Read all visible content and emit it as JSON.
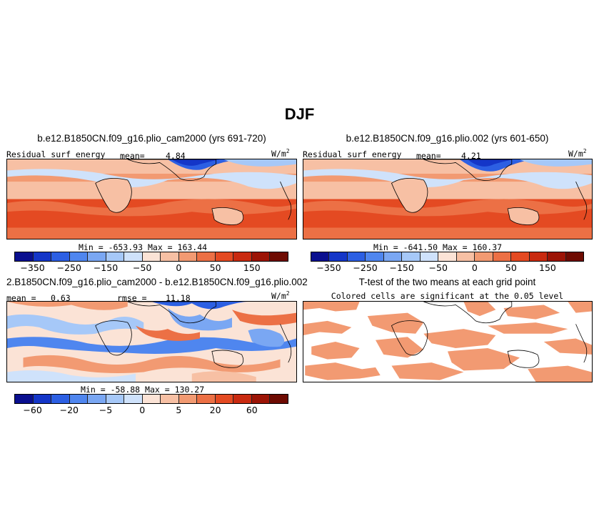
{
  "figure_title": "DJF",
  "palette": [
    "#0a0f8f",
    "#1436c8",
    "#2c5fe3",
    "#4f86ef",
    "#7aa7f3",
    "#a6c8f8",
    "#cfe2fb",
    "#fbe3d6",
    "#f7c0a4",
    "#f29a72",
    "#ec7045",
    "#e44a22",
    "#c92a10",
    "#9c1406",
    "#6e0b02"
  ],
  "chart_data": [
    {
      "type": "heatmap",
      "id": "panel_top_left",
      "title": "b.e12.B1850CN.f09_g16.plio_cam2000 (yrs 691-720)",
      "variable_label": "Residual surf energy",
      "mean_label": "mean=",
      "mean_value": "4.84",
      "units": "W/m",
      "units_exp": "2",
      "min_label": "Min =",
      "min_value": "-653.93",
      "max_label": "Max =",
      "max_value": "163.44",
      "colorbar_ticks": [
        "−350",
        "−250",
        "−150",
        "−50",
        "0",
        "50",
        "150"
      ],
      "colorbar_levels": [
        -400,
        -350,
        -300,
        -250,
        -200,
        -150,
        -100,
        -50,
        0,
        25,
        50,
        100,
        150,
        200,
        250
      ],
      "lon_range": [
        0,
        360
      ],
      "lat_range": [
        -45,
        45
      ]
    },
    {
      "type": "heatmap",
      "id": "panel_top_right",
      "title": "b.e12.B1850CN.f09_g16.plio.002 (yrs 601-650)",
      "variable_label": "Residual surf energy",
      "mean_label": "mean=",
      "mean_value": "4.21",
      "units": "W/m",
      "units_exp": "2",
      "min_label": "Min =",
      "min_value": "-641.50",
      "max_label": "Max =",
      "max_value": "160.37",
      "colorbar_ticks": [
        "−350",
        "−250",
        "−150",
        "−50",
        "0",
        "50",
        "150"
      ],
      "lon_range": [
        0,
        360
      ],
      "lat_range": [
        -45,
        45
      ]
    },
    {
      "type": "heatmap",
      "id": "panel_bottom_left",
      "title": "2.B1850CN.f09_g16.plio_cam2000 - b.e12.B1850CN.f09_g16.plio.002",
      "mean_label": "mean =",
      "mean_value": "0.63",
      "rmse_label": "rmse =",
      "rmse_value": "11.18",
      "units": "W/m",
      "units_exp": "2",
      "min_label": "Min =",
      "min_value": "-58.88",
      "max_label": "Max =",
      "max_value": "130.27",
      "colorbar_ticks": [
        "−60",
        "−20",
        "−5",
        "0",
        "5",
        "20",
        "60"
      ],
      "lon_range": [
        0,
        360
      ],
      "lat_range": [
        -45,
        45
      ]
    },
    {
      "type": "heatmap",
      "id": "panel_bottom_right",
      "title": "T-test of the two means at each grid point",
      "subtitle": "Colored cells are significant at the 0.05 level",
      "significance_level": 0.05,
      "lon_range": [
        0,
        360
      ],
      "lat_range": [
        -45,
        45
      ]
    }
  ]
}
